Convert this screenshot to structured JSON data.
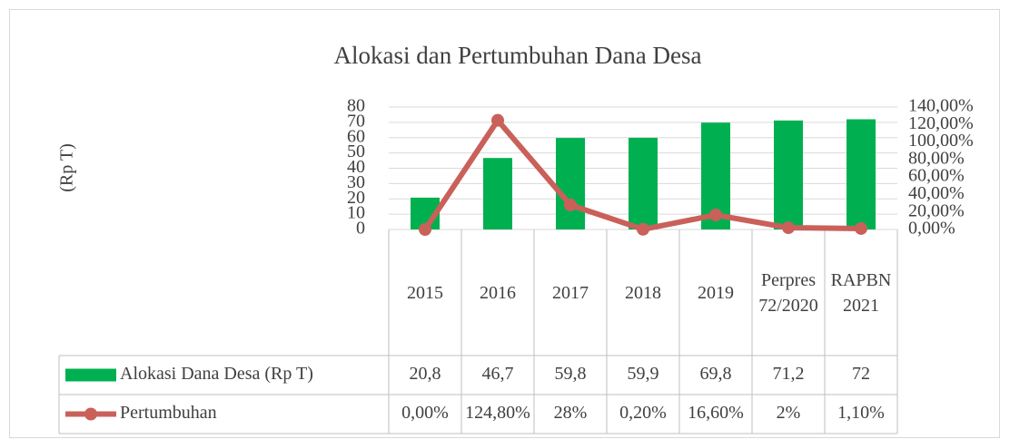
{
  "chart_data": {
    "type": "bar",
    "title": "Alokasi dan Pertumbuhan Dana Desa",
    "y_label": "(Rp T)",
    "categories": [
      "2015",
      "2016",
      "2017",
      "2018",
      "2019",
      "Perpres 72/2020",
      "RAPBN 2021"
    ],
    "series": [
      {
        "name": "Alokasi Dana Desa (Rp T)",
        "type": "bar",
        "color": "#00b050",
        "values": [
          20.8,
          46.7,
          59.8,
          59.9,
          69.8,
          71.2,
          72
        ],
        "value_labels": [
          "20,8",
          "46,7",
          "59,8",
          "59,9",
          "69,8",
          "71,2",
          "72"
        ]
      },
      {
        "name": "Pertumbuhan",
        "type": "line",
        "axis": "y2",
        "color": "#c9605a",
        "values": [
          0,
          124.8,
          28,
          0.2,
          16.6,
          2,
          1.1
        ],
        "value_labels": [
          "0,00%",
          "124,80%",
          "28%",
          "0,20%",
          "16,60%",
          "2%",
          "1,10%"
        ]
      }
    ],
    "ylim": [
      0,
      80
    ],
    "yticks": [
      0,
      10,
      20,
      30,
      40,
      50,
      60,
      70,
      80
    ],
    "y2lim": [
      0,
      140
    ],
    "y2ticks": [
      {
        "value": 0,
        "label": "0,00%"
      },
      {
        "value": 20,
        "label": "20,00%"
      },
      {
        "value": 40,
        "label": "40,00%"
      },
      {
        "value": 60,
        "label": "60,00%"
      },
      {
        "value": 80,
        "label": "80,00%"
      },
      {
        "value": 100,
        "label": "100,00%"
      },
      {
        "value": 120,
        "label": "120,00%"
      },
      {
        "value": 140,
        "label": "140,00%"
      }
    ],
    "grid": true
  }
}
